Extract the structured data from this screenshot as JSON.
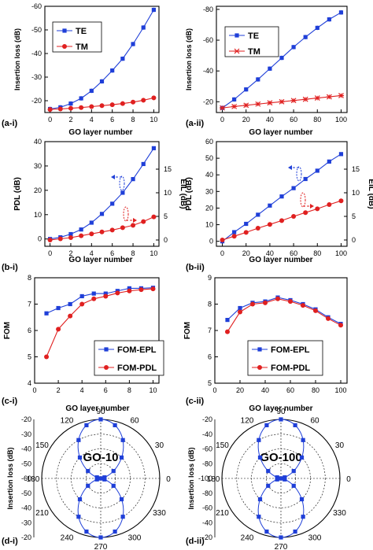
{
  "colors": {
    "blue": "#1f3fd8",
    "red": "#e02020",
    "axis": "#000000"
  },
  "chart_data": [
    {
      "id": "a-i",
      "type": "line",
      "panel_label": "(a-i)",
      "xlabel": "GO layer number",
      "ylabel": "Insertion loss (dB)",
      "xlim": [
        -0.5,
        10.5
      ],
      "xticks": [
        0,
        2,
        4,
        6,
        8,
        10
      ],
      "ylim": [
        -15,
        -60
      ],
      "yticks": [
        -20,
        -30,
        -40,
        -50,
        -60
      ],
      "legend": "top-left",
      "series": [
        {
          "name": "TE",
          "color": "blue",
          "marker": "square",
          "x": [
            0,
            1,
            2,
            3,
            4,
            5,
            6,
            7,
            8,
            9,
            10
          ],
          "y": [
            -16.5,
            -17.2,
            -18.8,
            -21.0,
            -24.2,
            -28.2,
            -32.8,
            -37.8,
            -44.0,
            -51.0,
            -58.5
          ]
        },
        {
          "name": "TM",
          "color": "red",
          "marker": "circle",
          "x": [
            0,
            1,
            2,
            3,
            4,
            5,
            6,
            7,
            8,
            9,
            10
          ],
          "y": [
            -16.3,
            -16.5,
            -16.8,
            -17.1,
            -17.5,
            -17.9,
            -18.3,
            -18.8,
            -19.4,
            -20.2,
            -21.2
          ]
        }
      ]
    },
    {
      "id": "a-ii",
      "type": "line",
      "panel_label": "(a-ii)",
      "xlabel": "GO layer number",
      "ylabel": "Insertion loss (dB)",
      "xlim": [
        -5,
        105
      ],
      "xticks": [
        0,
        20,
        40,
        60,
        80,
        100
      ],
      "ylim": [
        -13,
        -82
      ],
      "yticks": [
        -20,
        -40,
        -60,
        -80
      ],
      "legend": "top-left",
      "series": [
        {
          "name": "TE",
          "color": "blue",
          "marker": "square",
          "x": [
            0,
            10,
            20,
            30,
            40,
            50,
            60,
            70,
            80,
            90,
            100
          ],
          "y": [
            -16.0,
            -21.5,
            -28.0,
            -34.5,
            -41.5,
            -48.5,
            -55.5,
            -62.0,
            -68.0,
            -73.5,
            -78.0
          ]
        },
        {
          "name": "TM",
          "color": "red",
          "marker": "star",
          "x": [
            0,
            10,
            20,
            30,
            40,
            50,
            60,
            70,
            80,
            90,
            100
          ],
          "y": [
            -16.0,
            -16.9,
            -17.7,
            -18.5,
            -19.3,
            -20.0,
            -20.8,
            -21.6,
            -22.4,
            -23.2,
            -24.0
          ]
        }
      ]
    },
    {
      "id": "b-i",
      "type": "line",
      "panel_label": "(b-i)",
      "xlabel": "GO layer number",
      "ylabel": "PDL (dB)",
      "y2label": "EIL (dB)",
      "xlim": [
        -0.5,
        10.5
      ],
      "xticks": [
        0,
        2,
        4,
        6,
        8,
        10
      ],
      "ylim": [
        -3,
        40
      ],
      "yticks": [
        0,
        10,
        20,
        30,
        40
      ],
      "y2ticks": [
        0,
        5,
        10,
        15
      ],
      "series": [
        {
          "name": "PDL",
          "color": "blue",
          "marker": "square",
          "axis": "left",
          "x": [
            0,
            1,
            2,
            3,
            4,
            5,
            6,
            7,
            8,
            9,
            10
          ],
          "y": [
            0.0,
            0.7,
            2.0,
            3.9,
            6.7,
            10.3,
            14.5,
            19.0,
            24.6,
            30.8,
            37.3
          ]
        },
        {
          "name": "EIL",
          "color": "red",
          "marker": "circle",
          "axis": "right",
          "x": [
            0,
            1,
            2,
            3,
            4,
            5,
            6,
            7,
            8,
            9,
            10
          ],
          "y": [
            0.0,
            0.25,
            0.5,
            0.9,
            1.3,
            1.7,
            2.1,
            2.6,
            3.1,
            3.9,
            4.9
          ]
        }
      ]
    },
    {
      "id": "b-ii",
      "type": "line",
      "panel_label": "(b-ii)",
      "xlabel": "GO layer number",
      "ylabel": "PDL (dB)",
      "y2label": "EIL (dB)",
      "xlim": [
        -5,
        105
      ],
      "xticks": [
        0,
        20,
        40,
        60,
        80,
        100
      ],
      "ylim": [
        -3,
        60
      ],
      "yticks": [
        0,
        10,
        20,
        30,
        40,
        50,
        60
      ],
      "y2ticks": [
        0,
        5,
        10,
        15
      ],
      "series": [
        {
          "name": "PDL",
          "color": "blue",
          "marker": "square",
          "axis": "left",
          "x": [
            0,
            10,
            20,
            30,
            40,
            50,
            60,
            70,
            80,
            90,
            100
          ],
          "y": [
            0.0,
            5.5,
            10.5,
            16.0,
            21.5,
            27.0,
            32.0,
            37.5,
            42.5,
            48.0,
            52.5
          ]
        },
        {
          "name": "EIL",
          "color": "red",
          "marker": "circle",
          "axis": "right",
          "x": [
            0,
            10,
            20,
            30,
            40,
            50,
            60,
            70,
            80,
            90,
            100
          ],
          "y": [
            0.0,
            0.8,
            1.6,
            2.5,
            3.3,
            4.1,
            5.0,
            5.8,
            6.6,
            7.5,
            8.3
          ]
        }
      ]
    },
    {
      "id": "c-i",
      "type": "line",
      "panel_label": "(c-i)",
      "xlabel": "GO layer number",
      "ylabel": "FOM",
      "xlim": [
        0,
        10.5
      ],
      "xticks": [
        0,
        2,
        4,
        6,
        8,
        10
      ],
      "ylim": [
        4,
        8
      ],
      "yticks": [
        4,
        5,
        6,
        7,
        8
      ],
      "legend": "bottom-right",
      "series": [
        {
          "name": "FOM-EPL",
          "color": "blue",
          "marker": "square",
          "x": [
            1,
            2,
            3,
            4,
            5,
            6,
            7,
            8,
            9,
            10
          ],
          "y": [
            6.65,
            6.85,
            7.0,
            7.3,
            7.4,
            7.4,
            7.5,
            7.6,
            7.6,
            7.62
          ]
        },
        {
          "name": "FOM-PDL",
          "color": "red",
          "marker": "circle",
          "x": [
            1,
            2,
            3,
            4,
            5,
            6,
            7,
            8,
            9,
            10
          ],
          "y": [
            5.0,
            6.05,
            6.55,
            7.0,
            7.2,
            7.3,
            7.42,
            7.5,
            7.55,
            7.58
          ]
        }
      ]
    },
    {
      "id": "c-ii",
      "type": "line",
      "panel_label": "(c-ii)",
      "xlabel": "GO layer number",
      "ylabel": "FOM",
      "xlim": [
        0,
        105
      ],
      "xticks": [
        0,
        20,
        40,
        60,
        80,
        100
      ],
      "ylim": [
        5,
        9
      ],
      "yticks": [
        5,
        6,
        7,
        8,
        9
      ],
      "legend": "bottom-right",
      "series": [
        {
          "name": "FOM-EPL",
          "color": "blue",
          "marker": "square",
          "x": [
            10,
            20,
            30,
            40,
            50,
            60,
            70,
            80,
            90,
            100
          ],
          "y": [
            7.4,
            7.85,
            8.05,
            8.1,
            8.25,
            8.15,
            8.0,
            7.8,
            7.5,
            7.25
          ]
        },
        {
          "name": "FOM-PDL",
          "color": "red",
          "marker": "circle",
          "x": [
            10,
            20,
            30,
            40,
            50,
            60,
            70,
            80,
            90,
            100
          ],
          "y": [
            6.95,
            7.7,
            8.0,
            8.05,
            8.2,
            8.1,
            7.95,
            7.75,
            7.45,
            7.2
          ]
        }
      ]
    },
    {
      "id": "d-i",
      "type": "polar",
      "panel_label": "(d-i)",
      "inset_label": "GO-10",
      "ylabel": "Insertion loss (dB)",
      "radial_range": [
        -60,
        -20
      ],
      "radial_ticks_top": [
        -20,
        -30,
        -40,
        -50,
        -60
      ],
      "radial_ticks_bottom": [
        -50,
        -40,
        -30,
        -20
      ],
      "angle_labels": [
        0,
        30,
        60,
        90,
        120,
        150,
        180,
        210,
        240,
        270,
        300,
        330
      ],
      "angles_deg_step": 15,
      "series": [
        {
          "name": "",
          "color": "blue",
          "marker": "square",
          "shape": "cos2",
          "min_db": -60,
          "max_db": -20
        }
      ]
    },
    {
      "id": "d-ii",
      "type": "polar",
      "panel_label": "(d-ii)",
      "inset_label": "GO-100",
      "ylabel": "Insertion loss (dB)",
      "radial_range": [
        -100,
        -20
      ],
      "radial_ticks_top": [
        -20,
        -40,
        -60,
        -80,
        -100
      ],
      "radial_ticks_bottom": [
        -80,
        -60,
        -40,
        -20
      ],
      "angle_labels": [
        0,
        30,
        60,
        90,
        120,
        150,
        180,
        210,
        240,
        270,
        300,
        330
      ],
      "angles_deg_step": 15,
      "series": [
        {
          "name": "",
          "color": "blue",
          "marker": "square",
          "shape": "cos2",
          "min_db": -100,
          "max_db": -20
        }
      ]
    }
  ]
}
